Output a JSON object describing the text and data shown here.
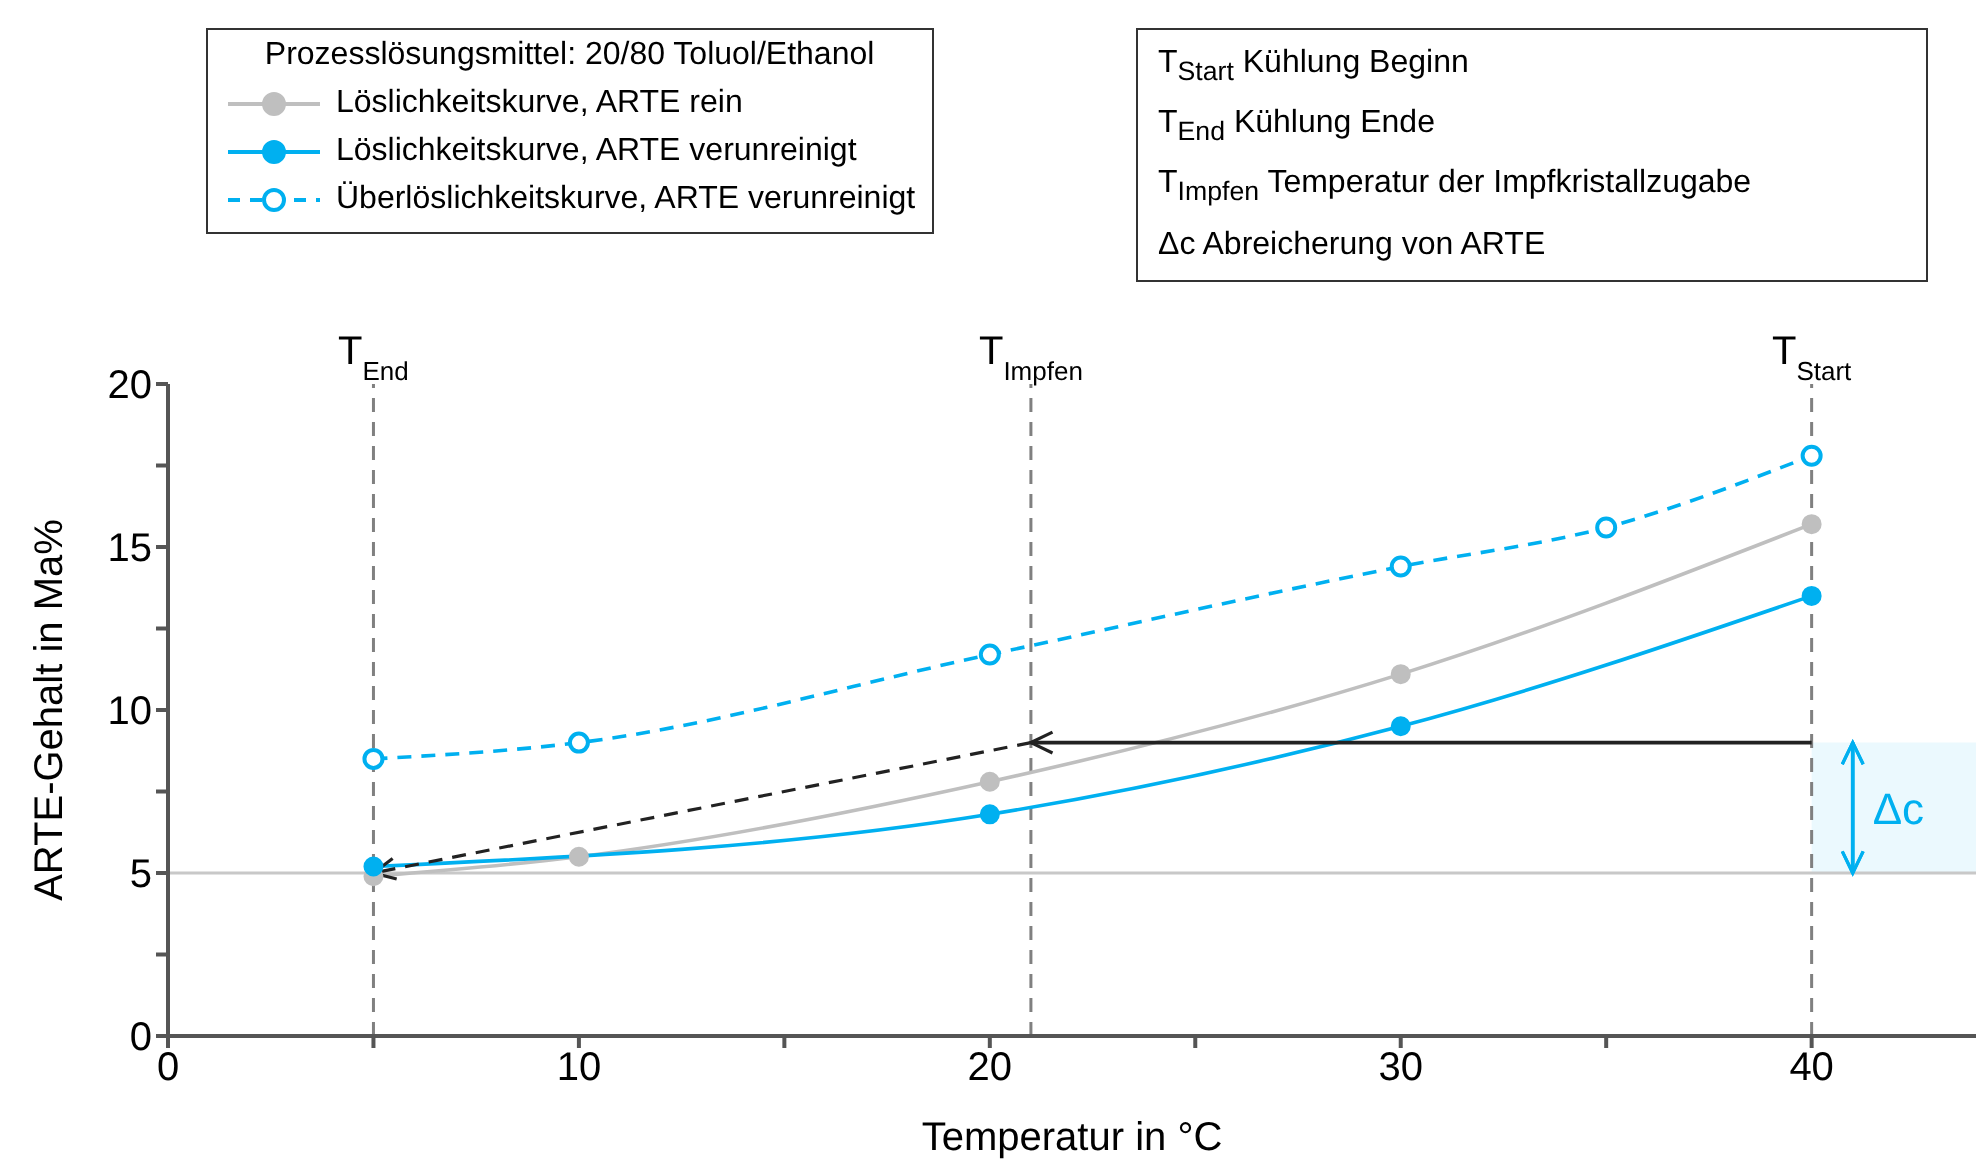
{
  "chart_data": {
    "type": "line",
    "xlabel": "Temperatur in °C",
    "ylabel": "ARTE-Gehalt in Ma%",
    "legend_title": "Prozesslösungsmittel: 20/80 Toluol/Ethanol",
    "legend": "top left",
    "xlim": [
      0,
      44
    ],
    "xticks": [
      0,
      {
        "value": 5,
        "label": null
      },
      10,
      {
        "value": 15,
        "label": null
      },
      20,
      {
        "value": 25,
        "label": null
      },
      30,
      {
        "value": 35,
        "label": null
      },
      40
    ],
    "ylim": [
      0,
      20
    ],
    "yticks": [
      0,
      {
        "value": 2.5,
        "label": null
      },
      5,
      {
        "value": 7.5,
        "label": null
      },
      10,
      {
        "value": 12.5,
        "label": null
      },
      15,
      {
        "value": 17.5,
        "label": null
      },
      20
    ],
    "grid": false,
    "marker": "circle",
    "series": [
      {
        "name": "Löslichkeitskurve, ARTE rein",
        "color": "#bfbfbf",
        "x": [
          5,
          10,
          20,
          30,
          40
        ],
        "values": [
          4.9,
          5.5,
          7.8,
          11.1,
          15.7
        ],
        "line_style": "solid"
      },
      {
        "name": "Löslichkeitskurve, ARTE verunreinigt",
        "color": "#00b0f0",
        "x": [
          5,
          20,
          30,
          40
        ],
        "values": [
          5.2,
          6.8,
          9.5,
          13.5
        ],
        "line_style": "solid"
      },
      {
        "name": "Überlöslichkeitskurve, ARTE verunreinigt",
        "color": "#00b0f0",
        "x": [
          5,
          10,
          20,
          30,
          35,
          40
        ],
        "values": [
          8.5,
          9.0,
          11.7,
          14.4,
          15.6,
          17.8
        ],
        "line_style": "dashed"
      }
    ],
    "ref_lines": [
      {
        "axis": "x",
        "value": 5,
        "label": "T$_{End}$",
        "color": "#808080",
        "line_style": "dashed"
      },
      {
        "axis": "x",
        "value": 21,
        "label": "T$_{Impfen}$",
        "color": "#808080",
        "line_style": "dashed"
      },
      {
        "axis": "x",
        "value": 40,
        "label": "T$_{Start}$",
        "color": "#808080",
        "line_style": "dashed"
      },
      {
        "axis": "y",
        "value": 5,
        "label": null,
        "color": "#c8c8c8",
        "line_style": "solid"
      }
    ],
    "bands": [
      {
        "axis": "y",
        "from": 5,
        "to": 9,
        "label": "Δc",
        "color": "#00b0f0"
      }
    ],
    "annotations": [
      "T$_{Start}$ Kühlung Beginn",
      "T$_{End}$ Kühlung Ende",
      "T$_{Impfen}$ Temperatur der Impfkristallzugabe",
      "Δc Abreicherung von ARTE"
    ]
  }
}
